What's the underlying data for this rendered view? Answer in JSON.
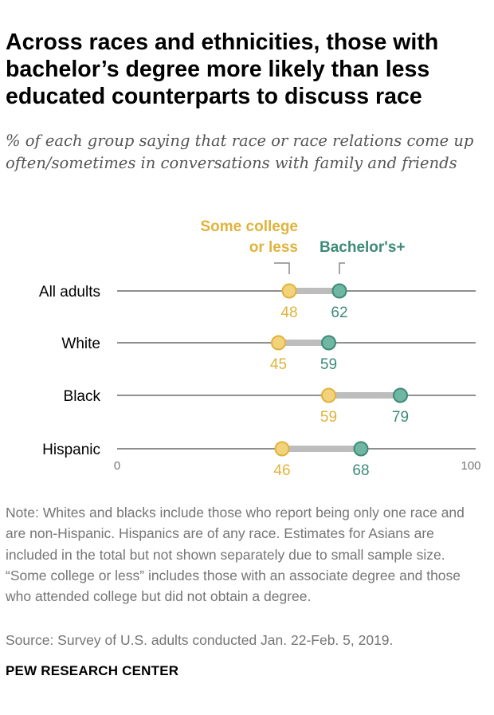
{
  "title": "Across races and ethnicities, those with bachelor’s degree more likely than less educated counterparts to discuss race",
  "subtitle": "% of each group saying that race or race relations come up often/sometimes in conversations with family and friends",
  "chart_data": {
    "type": "dot",
    "categories": [
      "All adults",
      "White",
      "Black",
      "Hispanic"
    ],
    "series": [
      {
        "name": "Some college or less",
        "legend_lines": [
          "Some college",
          "or less"
        ],
        "values": [
          48,
          45,
          59,
          46
        ],
        "color": "#E0B33D"
      },
      {
        "name": "Bachelor's+",
        "legend_lines": [
          "Bachelor's+"
        ],
        "values": [
          62,
          59,
          79,
          68
        ],
        "color": "#3E8A79"
      }
    ],
    "xlim": [
      0,
      100
    ],
    "tick_labels": [
      "0",
      "100"
    ]
  },
  "colors": {
    "dot_low_fill": "#F2D27A",
    "dot_high_fill": "#6FB7A3",
    "axis_line": "#8F8F8F",
    "range_bar": "#BDBDBD"
  },
  "note": "Note: Whites and blacks include those who report being only one race and are non-Hispanic. Hispanics are of any race. Estimates for Asians are included in the total but not shown separately due to small sample size. “Some college or less” includes those with an associate degree and those who attended college but did not obtain a degree.",
  "source": "Source: Survey of U.S. adults conducted Jan. 22-Feb. 5, 2019.",
  "brand": "PEW RESEARCH CENTER"
}
